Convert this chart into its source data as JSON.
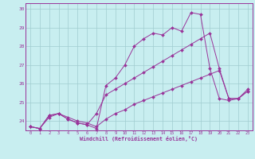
{
  "title": "",
  "xlabel": "Windchill (Refroidissement éolien,°C)",
  "ylabel": "",
  "xlim": [
    -0.5,
    23.5
  ],
  "ylim": [
    23.5,
    30.3
  ],
  "yticks": [
    24,
    25,
    26,
    27,
    28,
    29,
    30
  ],
  "xticks": [
    0,
    1,
    2,
    3,
    4,
    5,
    6,
    7,
    8,
    9,
    10,
    11,
    12,
    13,
    14,
    15,
    16,
    17,
    18,
    19,
    20,
    21,
    22,
    23
  ],
  "bg_color": "#c8eef0",
  "line_color": "#993399",
  "grid_color": "#a0ccd0",
  "series": [
    [
      23.7,
      23.6,
      24.3,
      24.4,
      24.1,
      23.9,
      23.8,
      23.6,
      25.9,
      26.3,
      27.0,
      28.0,
      28.4,
      28.7,
      28.6,
      29.0,
      28.8,
      29.8,
      29.7,
      26.8,
      25.2,
      25.1,
      25.2,
      25.7
    ],
    [
      23.7,
      23.6,
      24.3,
      24.4,
      24.1,
      23.9,
      23.8,
      24.4,
      25.4,
      25.7,
      26.0,
      26.3,
      26.6,
      26.9,
      27.2,
      27.5,
      27.8,
      28.1,
      28.4,
      28.7,
      26.8,
      25.2,
      25.2,
      25.6
    ],
    [
      23.7,
      23.6,
      24.2,
      24.4,
      24.2,
      24.0,
      23.9,
      23.7,
      24.1,
      24.4,
      24.6,
      24.9,
      25.1,
      25.3,
      25.5,
      25.7,
      25.9,
      26.1,
      26.3,
      26.5,
      26.7,
      25.2,
      25.2,
      25.6
    ]
  ]
}
